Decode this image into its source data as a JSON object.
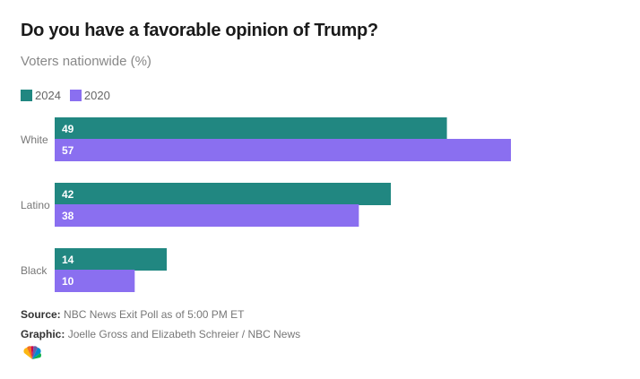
{
  "title": "Do you have a favorable opinion of Trump?",
  "subtitle": "Voters nationwide (%)",
  "colors": {
    "2024": "#218781",
    "2020": "#8a6ff0"
  },
  "chart_data": {
    "type": "bar",
    "orientation": "horizontal",
    "categories": [
      "White",
      "Latino",
      "Black"
    ],
    "series": [
      {
        "name": "2024",
        "values": [
          49,
          42,
          14
        ]
      },
      {
        "name": "2020",
        "values": [
          57,
          38,
          10
        ]
      }
    ],
    "title": "Do you have a favorable opinion of Trump?",
    "subtitle": "Voters nationwide (%)",
    "xlim": [
      0,
      100
    ],
    "grid": false,
    "legend": "top-left"
  },
  "footer": {
    "source_label": "Source:",
    "source_text": "NBC News Exit Poll as of 5:00 PM ET",
    "graphic_label": "Graphic:",
    "graphic_text": "Joelle Gross and Elizabeth Schreier / NBC News"
  },
  "logo_icon": "nbc-peacock-icon"
}
